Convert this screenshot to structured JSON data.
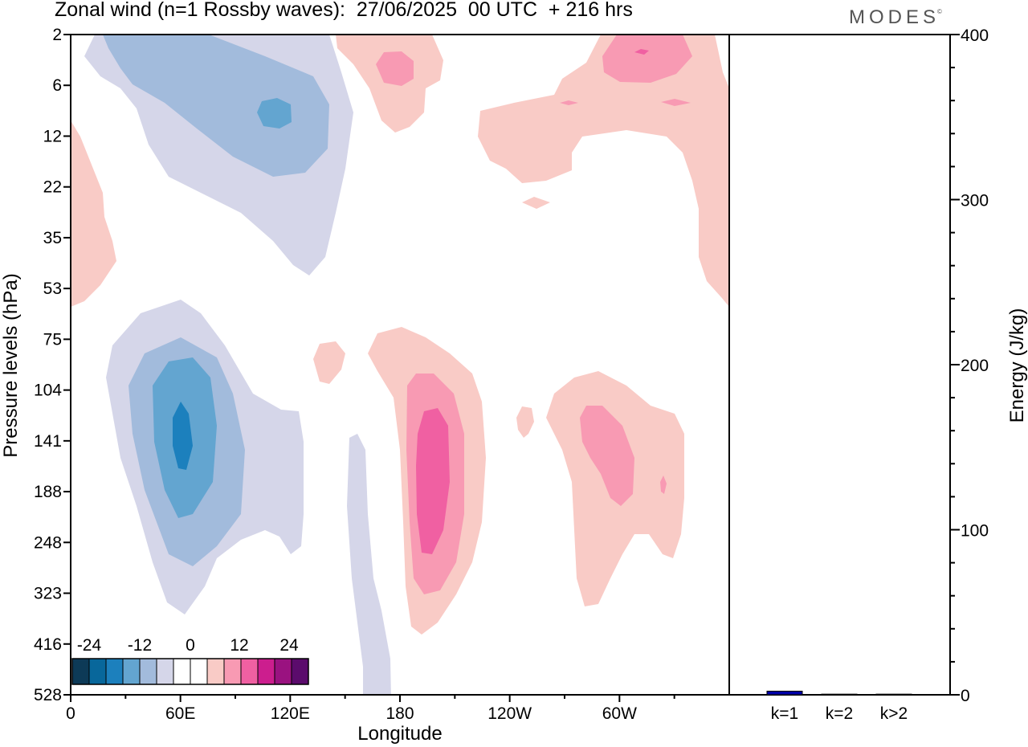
{
  "title": "Zonal wind (n=1 Rossby waves):  27/06/2025  00 UTC  + 216 hrs",
  "brand": "MODES",
  "brand_mark": "©",
  "colors": {
    "neg": [
      "#0d3a57",
      "#08679b",
      "#1c80bd",
      "#63a5d0",
      "#a2bbdc",
      "#d5d6e9"
    ],
    "zero": "#ffffff",
    "pos": [
      "#f9cbc6",
      "#f89ab3",
      "#f060a2",
      "#cc1e8e",
      "#9a1280",
      "#5b0b6c"
    ],
    "bar": "#0000a8"
  },
  "chart_data": [
    {
      "type": "heatmap",
      "title": "Zonal wind (n=1 Rossby waves):  27/06/2025  00 UTC  + 216 hrs",
      "xlabel": "Longitude",
      "ylabel": "Pressure levels (hPa)",
      "x_ticks": [
        "0",
        "60E",
        "120E",
        "180",
        "120W",
        "60W"
      ],
      "x_tick_degrees": [
        0,
        60,
        120,
        180,
        240,
        300
      ],
      "xlim": [
        0,
        360
      ],
      "y_ticks": [
        "2",
        "6",
        "12",
        "22",
        "35",
        "53",
        "75",
        "104",
        "141",
        "188",
        "248",
        "323",
        "416",
        "528"
      ],
      "y_scale": "level-index",
      "colorbar": {
        "tick_labels": [
          "-24",
          "-12",
          "0",
          "12",
          "24"
        ],
        "levels": [
          -30,
          -25,
          -20,
          -15,
          -10,
          -5,
          0,
          5,
          10,
          15,
          20,
          25,
          30
        ]
      },
      "features": [
        {
          "sign": "negative",
          "lon": 70,
          "level": "141",
          "peak": -22
        },
        {
          "sign": "negative",
          "lon": 100,
          "level": "12",
          "peak": -12
        },
        {
          "sign": "positive",
          "lon": 192,
          "level": "188",
          "peak": 14
        },
        {
          "sign": "positive",
          "lon": 300,
          "level": "141",
          "peak": 10
        },
        {
          "sign": "positive",
          "lon": 176,
          "level": "2",
          "peak": 8
        },
        {
          "sign": "positive",
          "lon": 315,
          "level": "2",
          "peak": 12
        }
      ]
    },
    {
      "type": "bar",
      "categories": [
        "k=1",
        "k=2",
        "k>2"
      ],
      "values": [
        2.2,
        0.4,
        0.4
      ],
      "ylabel": "Energy (J/kg)",
      "ylim": [
        0,
        400
      ],
      "y_ticks": [
        "0",
        "100",
        "200",
        "300",
        "400"
      ]
    }
  ]
}
